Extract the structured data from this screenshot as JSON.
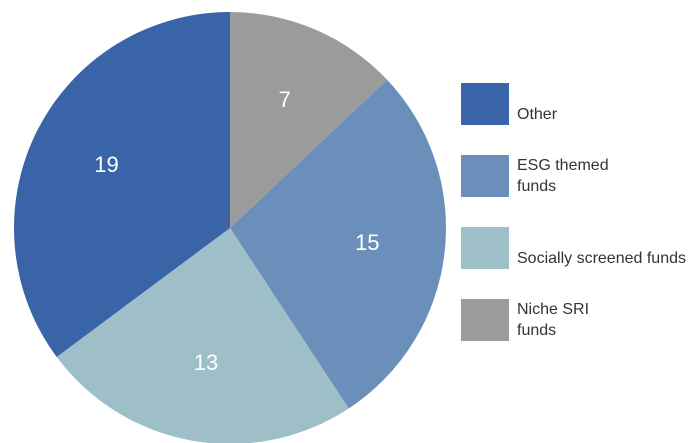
{
  "chart_data": {
    "type": "pie",
    "categories": [
      "Other",
      "ESG themed funds",
      "Socially screened funds",
      "Niche SRI funds"
    ],
    "values": [
      19,
      15,
      13,
      7
    ],
    "colors": [
      "#3a64a8",
      "#6a8fbb",
      "#9ebfc8",
      "#9b9b9b"
    ]
  }
}
